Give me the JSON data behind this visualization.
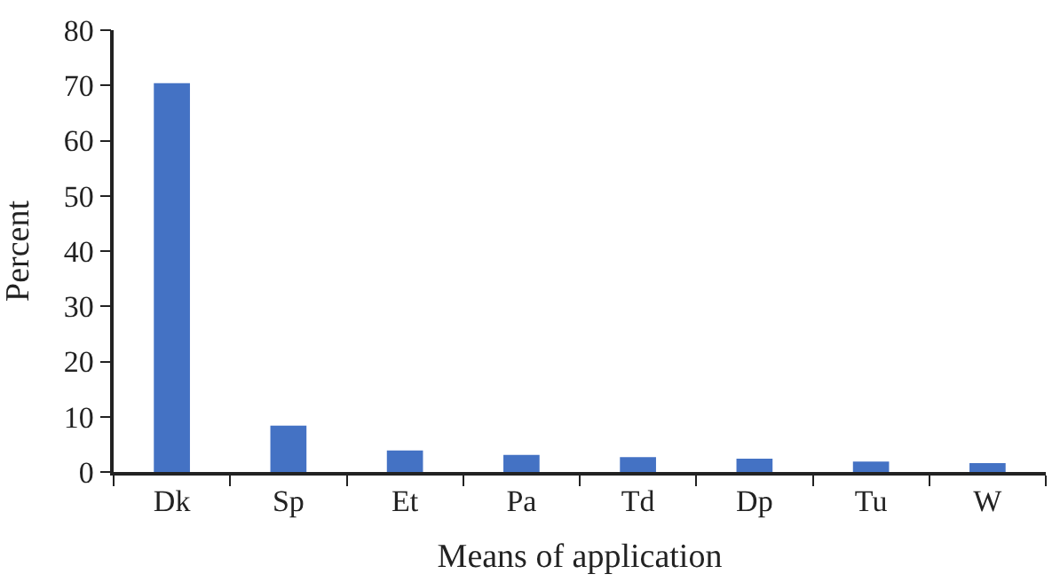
{
  "chart_data": {
    "type": "bar",
    "xlabel": "Means of application",
    "ylabel": "Percent",
    "categories": [
      "Dk",
      "Sp",
      "Et",
      "Pa",
      "Td",
      "Dp",
      "Tu",
      "W"
    ],
    "values": [
      70.4,
      8.4,
      3.9,
      3.1,
      2.7,
      2.4,
      1.9,
      1.6
    ],
    "color": "#4472c4",
    "ylim": [
      0,
      80
    ],
    "yticks": [
      0,
      10,
      20,
      30,
      40,
      50,
      60,
      70,
      80
    ],
    "legend": false
  }
}
